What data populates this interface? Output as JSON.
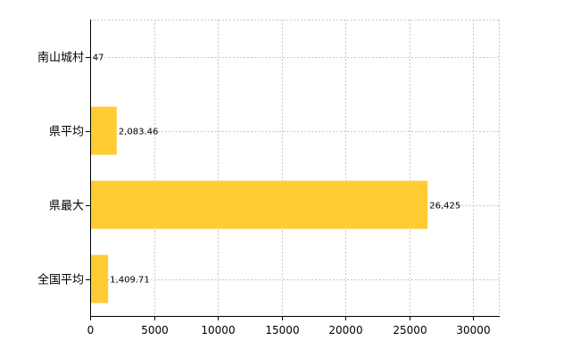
{
  "chart_data": {
    "type": "bar",
    "orientation": "horizontal",
    "categories": [
      "南山城村",
      "県平均",
      "県最大",
      "全国平均"
    ],
    "values": [
      47,
      2083.46,
      26425,
      1409.71
    ],
    "value_labels": [
      "47",
      "2,083.46",
      "26,425",
      "1,409.71"
    ],
    "x_ticks": [
      0,
      5000,
      10000,
      15000,
      20000,
      25000,
      30000
    ],
    "x_tick_labels": [
      "0",
      "5000",
      "10000",
      "15000",
      "20000",
      "25000",
      "30000"
    ],
    "xlim": [
      0,
      32000
    ],
    "bar_color": "#ffcc33",
    "grid": true,
    "title": "",
    "xlabel": "",
    "ylabel": ""
  }
}
